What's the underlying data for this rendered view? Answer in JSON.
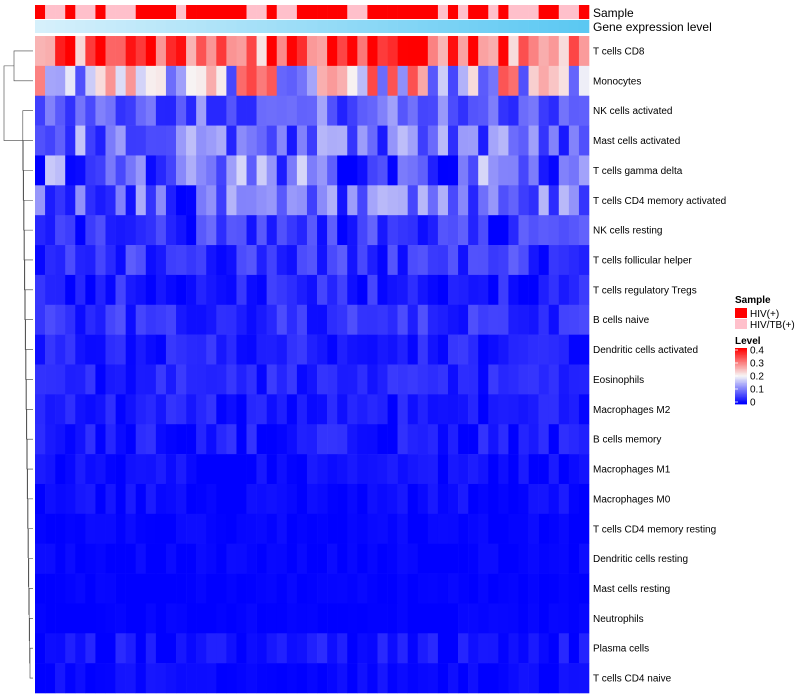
{
  "chart_data": {
    "type": "heatmap",
    "annotation_rows": [
      "Sample",
      "Gene expression level"
    ],
    "sample_groups": [
      "HIV(+)",
      "HIV/TB(+)",
      "HIV/TB(+)",
      "HIV(+)",
      "HIV/TB(+)",
      "HIV/TB(+)",
      "HIV(+)",
      "HIV/TB(+)",
      "HIV/TB(+)",
      "HIV/TB(+)",
      "HIV(+)",
      "HIV(+)",
      "HIV(+)",
      "HIV(+)",
      "HIV/TB(+)",
      "HIV(+)",
      "HIV(+)",
      "HIV(+)",
      "HIV(+)",
      "HIV(+)",
      "HIV(+)",
      "HIV/TB(+)",
      "HIV/TB(+)",
      "HIV(+)",
      "HIV/TB(+)",
      "HIV/TB(+)",
      "HIV(+)",
      "HIV(+)",
      "HIV(+)",
      "HIV(+)",
      "HIV(+)",
      "HIV/TB(+)",
      "HIV/TB(+)",
      "HIV(+)",
      "HIV(+)",
      "HIV(+)",
      "HIV(+)",
      "HIV(+)",
      "HIV(+)",
      "HIV(+)",
      "HIV/TB(+)",
      "HIV(+)",
      "HIV/TB(+)",
      "HIV(+)",
      "HIV(+)",
      "HIV/TB(+)",
      "HIV(+)",
      "HIV/TB(+)",
      "HIV/TB(+)",
      "HIV/TB(+)",
      "HIV(+)",
      "HIV(+)",
      "HIV/TB(+)",
      "HIV/TB(+)",
      "HIV(+)"
    ],
    "rows": [
      "T cells CD8",
      "Monocytes",
      "NK cells activated",
      "Mast cells activated",
      "T cells gamma delta",
      "T cells CD4 memory activated",
      "NK cells resting",
      "T cells follicular helper",
      "T cells regulatory  Tregs",
      "B cells naive",
      "Dendritic cells activated",
      "Eosinophils",
      "Macrophages M2",
      "B cells memory",
      "Macrophages M1",
      "Macrophages M0",
      "T cells CD4 memory resting",
      "Dendritic cells resting",
      "Mast cells resting",
      "Neutrophils",
      "Plasma cells",
      "T cells CD4 naive"
    ],
    "row_means": [
      0.31,
      0.2,
      0.08,
      0.09,
      0.08,
      0.07,
      0.04,
      0.04,
      0.025,
      0.035,
      0.025,
      0.025,
      0.02,
      0.02,
      0.008,
      0.008,
      0.003,
      0.003,
      0.002,
      0.002,
      0.012,
      0.006
    ],
    "row_spread": [
      0.06,
      0.09,
      0.035,
      0.045,
      0.06,
      0.05,
      0.03,
      0.025,
      0.02,
      0.02,
      0.015,
      0.015,
      0.015,
      0.015,
      0.01,
      0.01,
      0.005,
      0.005,
      0.003,
      0.003,
      0.015,
      0.008
    ],
    "color_scale": {
      "min": 0,
      "mid": 0.2,
      "max": 0.4,
      "low": "#0000ff",
      "midColor": "#f7f7f7",
      "high": "#ff0000"
    },
    "legend": {
      "sample_title": "Sample",
      "sample_items": [
        {
          "label": "HIV(+)",
          "color": "#ff0000"
        },
        {
          "label": "HIV/TB(+)",
          "color": "#ffc0cb"
        }
      ],
      "level_title": "Level",
      "level_ticks": [
        "0.4",
        "0.3",
        "0.2",
        "0.1",
        "0"
      ]
    },
    "gene_expression_colors": [
      "#d6f0fb",
      "#5bc8f2"
    ],
    "dendrogram": "row",
    "legend_position": "right"
  }
}
